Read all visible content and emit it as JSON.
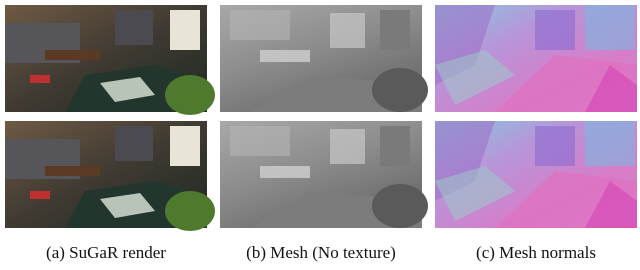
{
  "panels": [
    {
      "caption": "(a) SuGaR render"
    },
    {
      "caption": "(b) Mesh (No texture)"
    },
    {
      "caption": "(c) Mesh normals"
    }
  ]
}
